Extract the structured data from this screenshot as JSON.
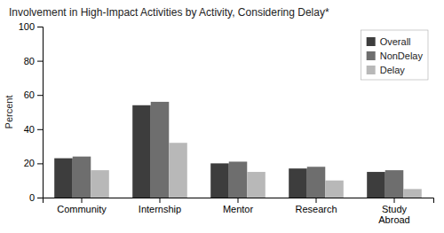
{
  "chart_data": {
    "type": "bar",
    "title": "Involvement in High-Impact Activities by Activity, Considering Delay*",
    "ylabel": "Percent",
    "categories": [
      "Community",
      "Internship",
      "Mentor",
      "Research",
      "Study\nAbroad"
    ],
    "series": [
      {
        "name": "Overall",
        "color": "#3d3d3d",
        "values": [
          23,
          54,
          20,
          17,
          15
        ]
      },
      {
        "name": "NonDelay",
        "color": "#6e6e6e",
        "values": [
          24,
          56,
          21,
          18,
          16
        ]
      },
      {
        "name": "Delay",
        "color": "#b8b8b8",
        "values": [
          16,
          32,
          15,
          10,
          5
        ]
      }
    ],
    "ylim": [
      0,
      100
    ],
    "yticks": [
      0,
      20,
      40,
      60,
      80,
      100
    ],
    "grid": false,
    "legend": "upper right"
  }
}
